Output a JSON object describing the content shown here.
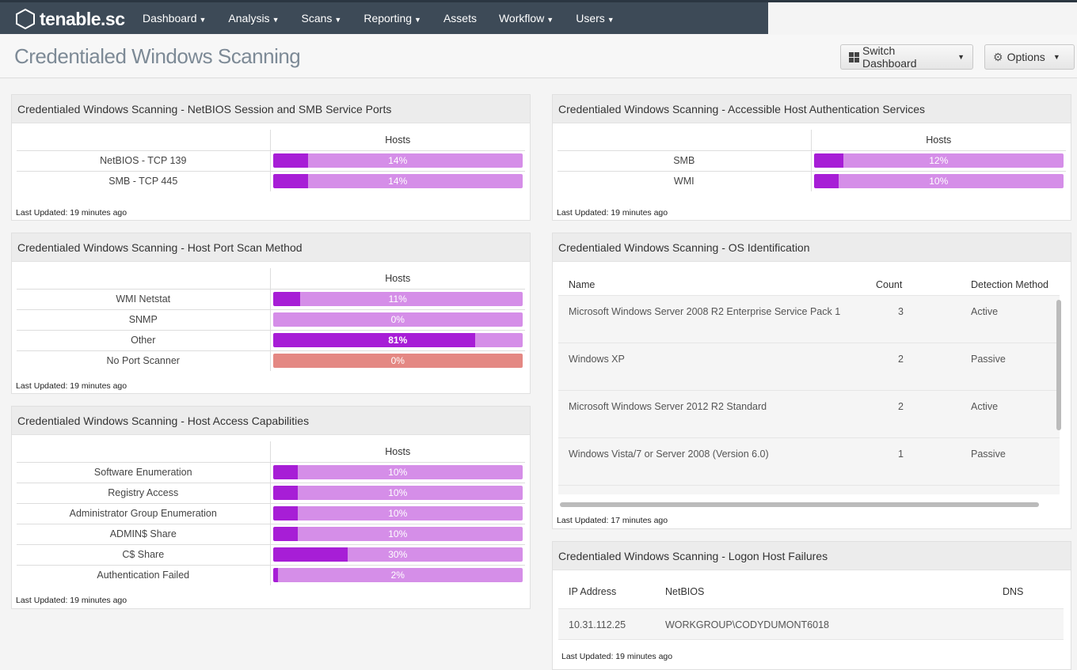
{
  "nav": {
    "brand": "tenable.sc",
    "items": [
      "Dashboard",
      "Analysis",
      "Scans",
      "Reporting",
      "Assets",
      "Workflow",
      "Users"
    ],
    "dropdown_items": [
      true,
      true,
      true,
      true,
      false,
      true,
      true
    ]
  },
  "header": {
    "title": "Credentialed Windows Scanning",
    "switch_dashboard": "Switch Dashboard",
    "options": "Options"
  },
  "colors": {
    "bar_fill": "#a71ed6",
    "bar_bg": "#d58ee8",
    "bar_alert": "#e48883",
    "nav_bg": "#3d4a57"
  },
  "panels": {
    "netbios": {
      "title": "Credentialed Windows Scanning - NetBIOS Session and SMB Service Ports",
      "column": "Hosts",
      "rows": [
        {
          "label": "NetBIOS - TCP 139",
          "value": "14%",
          "pct": 14
        },
        {
          "label": "SMB - TCP 445",
          "value": "14%",
          "pct": 14
        }
      ],
      "updated": "Last Updated: 19 minutes ago"
    },
    "auth": {
      "title": "Credentialed Windows Scanning - Accessible Host Authentication Services",
      "column": "Hosts",
      "rows": [
        {
          "label": "SMB",
          "value": "12%",
          "pct": 12
        },
        {
          "label": "WMI",
          "value": "10%",
          "pct": 10
        }
      ],
      "updated": "Last Updated: 19 minutes ago"
    },
    "portscan": {
      "title": "Credentialed Windows Scanning - Host Port Scan Method",
      "column": "Hosts",
      "rows": [
        {
          "label": "WMI Netstat",
          "value": "11%",
          "pct": 11
        },
        {
          "label": "SNMP",
          "value": "0%",
          "pct": 0
        },
        {
          "label": "Other",
          "value": "81%",
          "pct": 81
        },
        {
          "label": "No Port Scanner",
          "value": "0%",
          "pct": 0,
          "alert": true
        }
      ],
      "updated": "Last Updated: 19 minutes ago"
    },
    "access": {
      "title": "Credentialed Windows Scanning - Host Access Capabilities",
      "column": "Hosts",
      "rows": [
        {
          "label": "Software Enumeration",
          "value": "10%",
          "pct": 10
        },
        {
          "label": "Registry Access",
          "value": "10%",
          "pct": 10
        },
        {
          "label": "Administrator Group Enumeration",
          "value": "10%",
          "pct": 10
        },
        {
          "label": "ADMIN$ Share",
          "value": "10%",
          "pct": 10
        },
        {
          "label": "C$ Share",
          "value": "30%",
          "pct": 30
        },
        {
          "label": "Authentication Failed",
          "value": "2%",
          "pct": 2
        }
      ],
      "updated": "Last Updated: 19 minutes ago"
    },
    "os": {
      "title": "Credentialed Windows Scanning - OS Identification",
      "columns": {
        "name": "Name",
        "count": "Count",
        "method": "Detection Method"
      },
      "rows": [
        {
          "name": "Microsoft Windows Server 2008 R2 Enterprise Service Pack 1",
          "count": "3",
          "method": "Active"
        },
        {
          "name": "Windows XP",
          "count": "2",
          "method": "Passive"
        },
        {
          "name": "Microsoft Windows Server 2012 R2 Standard",
          "count": "2",
          "method": "Active"
        },
        {
          "name": "Windows Vista/7 or Server 2008 (Version 6.0)",
          "count": "1",
          "method": "Passive"
        },
        {
          "name": "",
          "count": "",
          "method": ""
        }
      ],
      "updated": "Last Updated: 17 minutes ago"
    },
    "logon": {
      "title": "Credentialed Windows Scanning - Logon Host Failures",
      "columns": {
        "ip": "IP Address",
        "netbios": "NetBIOS",
        "dns": "DNS"
      },
      "rows": [
        {
          "ip": "10.31.112.25",
          "netbios": "WORKGROUP\\CODYDUMONT6018",
          "dns": ""
        }
      ],
      "updated": "Last Updated: 19 minutes ago"
    }
  }
}
